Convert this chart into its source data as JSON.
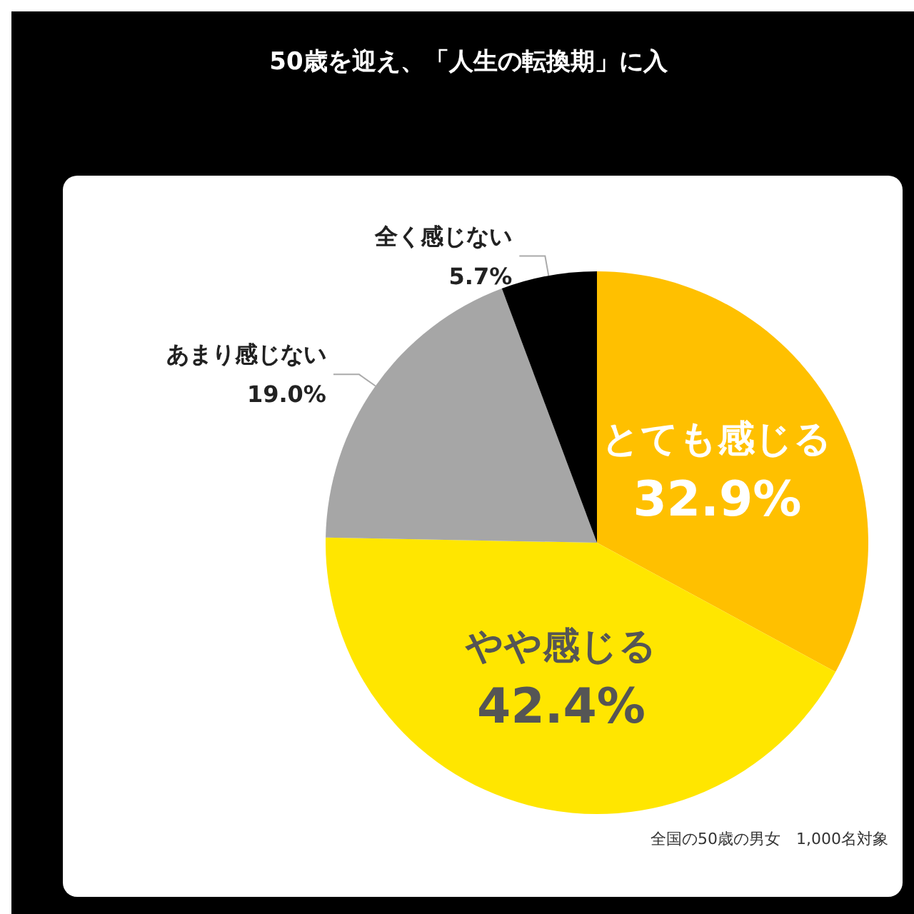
{
  "chart_data": {
    "type": "pie",
    "title": "50歳を迎え、「人生の転換期」に入",
    "categories": [
      "とても感じる",
      "やや感じる",
      "あまり感じない",
      "全く感じない"
    ],
    "values": [
      32.9,
      42.4,
      19.0,
      5.7
    ],
    "value_labels": [
      "32.9%",
      "42.4%",
      "19.0%",
      "5.7%"
    ],
    "colors": [
      "#ffc000",
      "#ffe600",
      "#a6a6a6",
      "#000000"
    ],
    "annotations": [
      "全国の50歳の男女　1,000名対象"
    ],
    "legend": false
  }
}
